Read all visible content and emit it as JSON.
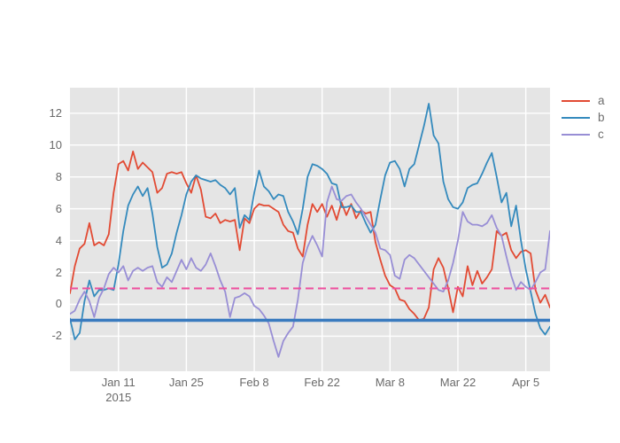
{
  "figure": {
    "background": "#ffffff",
    "plot_background": "#e5e5e5",
    "grid_color": "#ffffff",
    "tick_label_color": "#696969"
  },
  "chart_data": {
    "type": "line",
    "title": "",
    "xlabel": "",
    "ylabel": "",
    "grid": true,
    "legend_position": "top-right-outside",
    "x_unit": "daily points, 2015-01-01 through 2015-04-10",
    "x_range": [
      0,
      99
    ],
    "y_range": [
      -4.2,
      13.6
    ],
    "y_ticks": [
      -2,
      0,
      2,
      4,
      6,
      8,
      10,
      12
    ],
    "x_ticks": [
      {
        "day": 10,
        "label": "Jan 11",
        "sublabel": "2015"
      },
      {
        "day": 24,
        "label": "Jan 25",
        "sublabel": ""
      },
      {
        "day": 38,
        "label": "Feb 8",
        "sublabel": ""
      },
      {
        "day": 52,
        "label": "Feb 22",
        "sublabel": ""
      },
      {
        "day": 66,
        "label": "Mar 8",
        "sublabel": ""
      },
      {
        "day": 80,
        "label": "Mar 22",
        "sublabel": ""
      },
      {
        "day": 94,
        "label": "Apr 5",
        "sublabel": ""
      }
    ],
    "reference_lines": [
      {
        "y": 1,
        "style": "dashed",
        "color": "#ee509e",
        "width": 2
      },
      {
        "y": -1,
        "style": "solid",
        "color": "#3a7bbf",
        "width": 3.5
      }
    ],
    "series": [
      {
        "name": "a",
        "color": "#e24a33",
        "values": [
          0.7,
          2.4,
          3.5,
          3.8,
          5.1,
          3.7,
          3.9,
          3.7,
          4.4,
          7.0,
          8.8,
          9.0,
          8.4,
          9.6,
          8.5,
          8.9,
          8.6,
          8.3,
          7.0,
          7.3,
          8.2,
          8.3,
          8.2,
          8.3,
          7.6,
          7.0,
          8.1,
          7.2,
          5.5,
          5.4,
          5.7,
          5.1,
          5.3,
          5.2,
          5.3,
          3.4,
          5.4,
          5.1,
          6.0,
          6.3,
          6.2,
          6.2,
          6.0,
          5.8,
          5.0,
          4.6,
          4.5,
          3.5,
          3.0,
          5.0,
          6.3,
          5.8,
          6.3,
          5.5,
          6.2,
          5.3,
          6.4,
          5.6,
          6.3,
          5.4,
          5.9,
          5.7,
          5.8,
          3.9,
          2.8,
          1.8,
          1.2,
          1.0,
          0.3,
          0.2,
          -0.3,
          -0.6,
          -1.0,
          -0.9,
          -0.2,
          2.2,
          2.9,
          2.3,
          1.0,
          -0.5,
          1.1,
          0.5,
          2.4,
          1.2,
          2.1,
          1.3,
          1.7,
          2.2,
          4.6,
          4.3,
          4.5,
          3.4,
          2.9,
          3.3,
          3.4,
          3.2,
          0.9,
          0.1,
          0.6,
          -0.2
        ]
      },
      {
        "name": "b",
        "color": "#348abd",
        "values": [
          -0.9,
          -2.2,
          -1.8,
          0.2,
          1.5,
          0.5,
          0.9,
          0.9,
          1.0,
          0.9,
          2.5,
          4.6,
          6.2,
          6.9,
          7.4,
          6.8,
          7.3,
          5.7,
          3.6,
          2.3,
          2.5,
          3.2,
          4.5,
          5.6,
          6.9,
          7.7,
          8.1,
          7.9,
          7.8,
          7.7,
          7.8,
          7.5,
          7.3,
          6.9,
          7.3,
          4.8,
          5.6,
          5.3,
          7.0,
          8.4,
          7.4,
          7.1,
          6.6,
          6.9,
          6.8,
          5.8,
          5.2,
          4.4,
          6.0,
          8.0,
          8.8,
          8.7,
          8.5,
          8.2,
          7.6,
          7.5,
          6.1,
          6.1,
          6.2,
          5.8,
          5.8,
          5.1,
          4.5,
          5.0,
          6.6,
          8.1,
          8.9,
          9.0,
          8.5,
          7.4,
          8.5,
          8.8,
          10.0,
          11.2,
          12.6,
          10.6,
          10.1,
          7.7,
          6.6,
          6.1,
          6.0,
          6.4,
          7.3,
          7.5,
          7.6,
          8.2,
          8.9,
          9.5,
          8.0,
          6.4,
          7.0,
          4.9,
          6.2,
          4.0,
          2.2,
          0.8,
          -0.6,
          -1.5,
          -1.9,
          -1.4
        ]
      },
      {
        "name": "c",
        "color": "#988ed5",
        "values": [
          -0.6,
          -0.4,
          0.3,
          0.8,
          0.2,
          -0.8,
          0.4,
          1.0,
          1.9,
          2.3,
          2.0,
          2.4,
          1.5,
          2.1,
          2.3,
          2.1,
          2.3,
          2.4,
          1.4,
          1.1,
          1.7,
          1.4,
          2.1,
          2.8,
          2.2,
          2.9,
          2.3,
          2.1,
          2.5,
          3.2,
          2.4,
          1.5,
          0.8,
          -0.8,
          0.4,
          0.5,
          0.7,
          0.5,
          -0.1,
          -0.3,
          -0.7,
          -1.2,
          -2.3,
          -3.3,
          -2.3,
          -1.8,
          -1.4,
          0.3,
          2.6,
          3.6,
          4.3,
          3.7,
          3.0,
          6.4,
          7.4,
          6.6,
          6.5,
          6.8,
          6.9,
          6.4,
          6.0,
          5.5,
          5.0,
          4.5,
          3.5,
          3.4,
          3.1,
          1.8,
          1.6,
          2.8,
          3.1,
          2.9,
          2.5,
          2.1,
          1.7,
          1.3,
          0.9,
          0.8,
          1.5,
          2.6,
          4.0,
          5.8,
          5.2,
          5.0,
          5.0,
          4.9,
          5.1,
          5.6,
          4.8,
          4.3,
          3.0,
          1.8,
          0.9,
          1.4,
          1.1,
          0.9,
          1.4,
          2.0,
          2.2,
          4.6
        ]
      }
    ]
  }
}
